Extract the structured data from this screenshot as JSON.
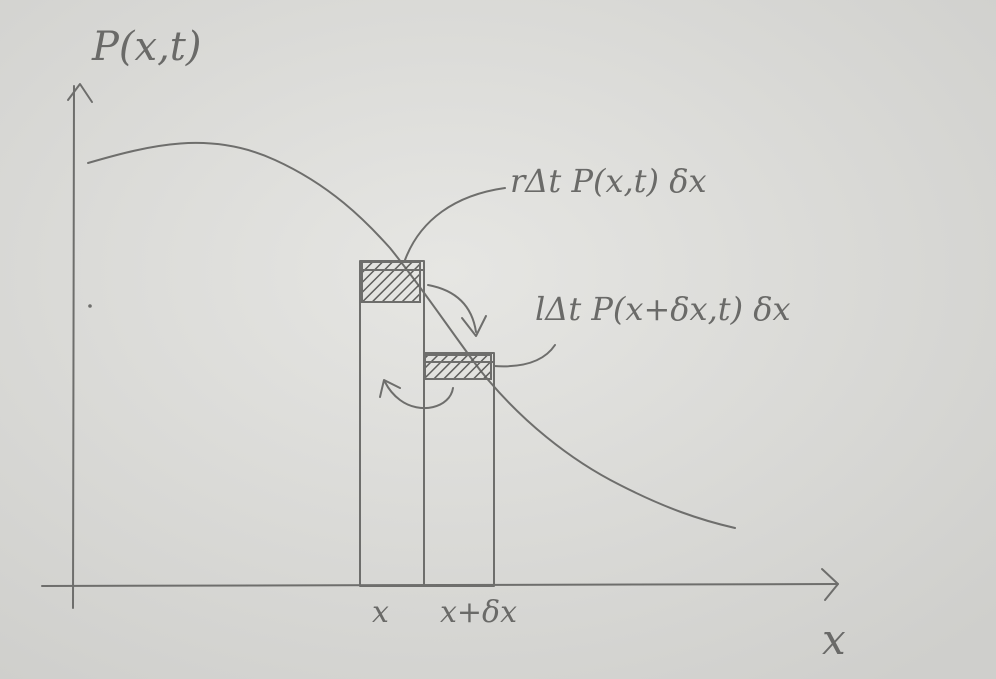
{
  "axes": {
    "y_label": "P(x,t)",
    "x_label": "x"
  },
  "ticks": {
    "x": "x",
    "x_plus_dx": "x+δx"
  },
  "annotations": {
    "right_flux": "rΔt P(x,t) δx",
    "left_flux": "lΔt P(x+δx,t) δx"
  },
  "colors": {
    "paper": "#d9d9d6",
    "pencil": "#6e6e6c"
  }
}
